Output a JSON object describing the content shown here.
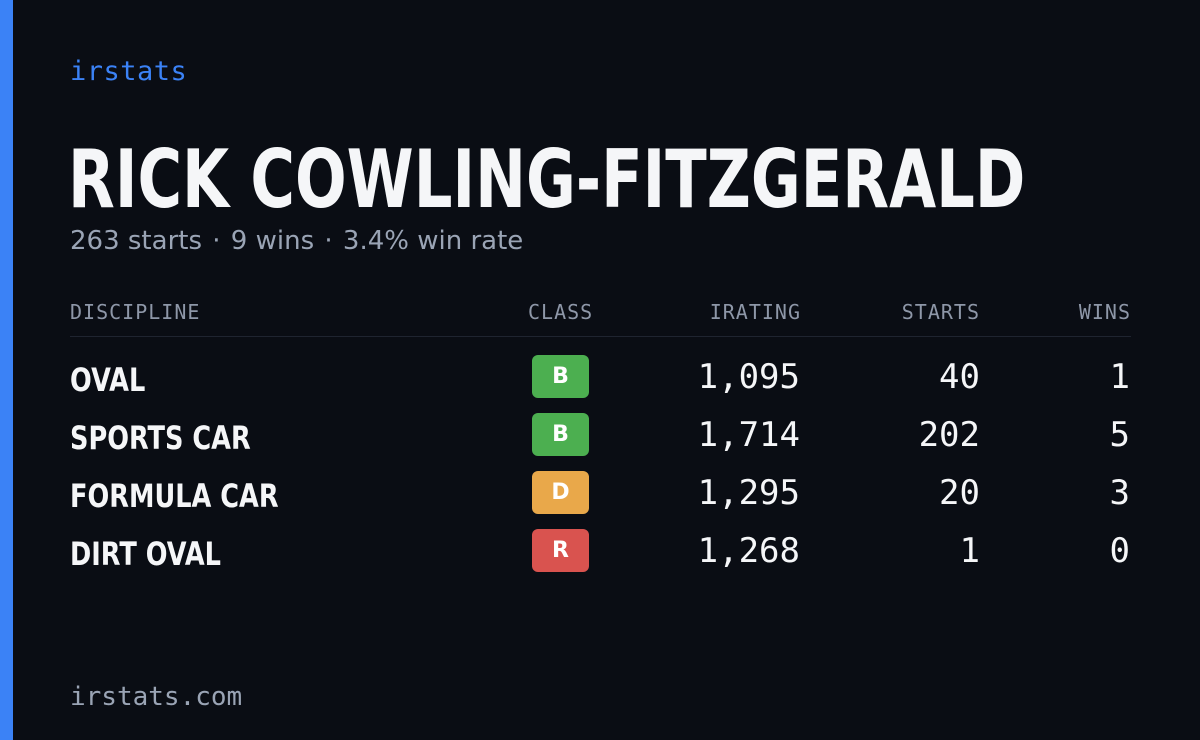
{
  "brand": "irstats",
  "driver": {
    "name": "RICK COWLING-FITZGERALD",
    "starts": "263 starts",
    "wins": "9 wins",
    "win_rate": "3.4% win rate",
    "separator": "·"
  },
  "table": {
    "headers": {
      "discipline": "DISCIPLINE",
      "class": "CLASS",
      "irating": "IRATING",
      "starts": "STARTS",
      "wins": "WINS"
    },
    "rows": [
      {
        "discipline": "OVAL",
        "class": "B",
        "class_color": "#4caf50",
        "irating": "1,095",
        "starts": "40",
        "wins": "1"
      },
      {
        "discipline": "SPORTS CAR",
        "class": "B",
        "class_color": "#4caf50",
        "irating": "1,714",
        "starts": "202",
        "wins": "5"
      },
      {
        "discipline": "FORMULA CAR",
        "class": "D",
        "class_color": "#e9a84a",
        "irating": "1,295",
        "starts": "20",
        "wins": "3"
      },
      {
        "discipline": "DIRT OVAL",
        "class": "R",
        "class_color": "#d9534f",
        "irating": "1,268",
        "starts": "1",
        "wins": "0"
      }
    ]
  },
  "footer": "irstats.com",
  "colors": {
    "background": "#0a0d14",
    "accent": "#3b82f6",
    "text": "#f5f6f8",
    "muted": "#9aa4b5"
  }
}
